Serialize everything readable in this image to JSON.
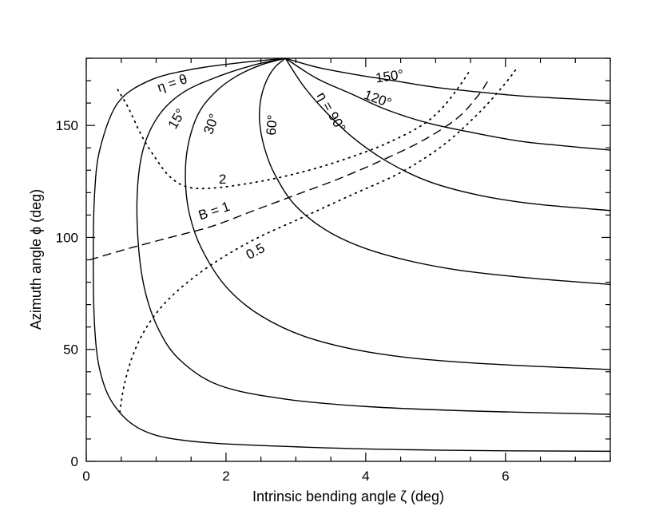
{
  "chart_data": {
    "type": "line",
    "title": "",
    "xlabel": "Intrinsic bending angle ζ (deg)",
    "ylabel": "Azimuth angle ϕ (deg)",
    "xlim": [
      0,
      7.5
    ],
    "ylim": [
      0,
      180
    ],
    "xticks": [
      0,
      2,
      4,
      6
    ],
    "xtick_labels": [
      "0",
      "2",
      "4",
      "6"
    ],
    "yticks": [
      0,
      50,
      100,
      150
    ],
    "ytick_labels": [
      "0",
      "50",
      "100",
      "150"
    ],
    "grid": false,
    "legend": "none",
    "series": [
      {
        "style": "solid",
        "x": [
          2.85,
          2.2,
          1.5,
          0.9,
          0.45,
          0.2,
          0.12,
          0.1,
          0.12,
          0.2,
          0.4,
          0.8,
          1.5,
          3,
          5,
          7.5
        ],
        "y": [
          180,
          178,
          175,
          170,
          160,
          140,
          120,
          90,
          60,
          40,
          25,
          14,
          9,
          6.5,
          5,
          4.5
        ]
      },
      {
        "style": "solid",
        "x": [
          2.85,
          2.4,
          1.9,
          1.4,
          1.05,
          0.82,
          0.73,
          0.75,
          0.85,
          1.05,
          1.35,
          1.9,
          2.8,
          4,
          5.5,
          7.5
        ],
        "y": [
          180,
          177,
          172,
          165,
          155,
          140,
          120,
          95,
          75,
          58,
          45,
          34,
          28,
          24.5,
          22.5,
          21
        ]
      },
      {
        "style": "solid",
        "x": [
          2.85,
          2.5,
          2.15,
          1.85,
          1.6,
          1.45,
          1.42,
          1.48,
          1.65,
          2.0,
          2.5,
          3.2,
          4.2,
          5.5,
          7.5
        ],
        "y": [
          180,
          177,
          172,
          165,
          155,
          140,
          125,
          110,
          95,
          78,
          65,
          55,
          48,
          44,
          41
        ]
      },
      {
        "style": "solid",
        "x": [
          2.85,
          2.7,
          2.58,
          2.5,
          2.48,
          2.55,
          2.7,
          3.0,
          3.5,
          4.2,
          5.2,
          6.3,
          7.5
        ],
        "y": [
          180,
          176,
          170,
          162,
          152,
          140,
          128,
          114,
          102,
          93,
          86,
          82,
          79
        ]
      },
      {
        "style": "solid",
        "x": [
          2.85,
          3.1,
          3.4,
          3.8,
          4.3,
          4.9,
          5.6,
          6.4,
          7.5
        ],
        "y": [
          180,
          168,
          157,
          145,
          134,
          125,
          119,
          115,
          112
        ]
      },
      {
        "style": "solid",
        "x": [
          2.85,
          3.3,
          3.8,
          4.3,
          4.9,
          5.5,
          6.2,
          6.8,
          7.5
        ],
        "y": [
          180,
          171,
          164,
          157,
          151,
          147,
          143,
          141,
          139
        ]
      },
      {
        "style": "solid",
        "x": [
          2.85,
          3.3,
          3.8,
          4.4,
          5.0,
          5.6,
          6.3,
          7.5
        ],
        "y": [
          180,
          176,
          173,
          170,
          167,
          165,
          163,
          161
        ]
      },
      {
        "style": "dotted",
        "x": [
          0.45,
          0.6,
          0.8,
          1.0,
          1.2,
          1.45,
          1.8,
          2.3,
          2.8,
          3.3,
          3.8,
          4.3,
          4.8,
          5.1,
          5.35,
          5.5
        ],
        "y": [
          166,
          158,
          145,
          135,
          127,
          122.5,
          122,
          124,
          127,
          131,
          136,
          142,
          150,
          158,
          168,
          175
        ]
      },
      {
        "style": "dashed",
        "x": [
          0.05,
          0.6,
          1.2,
          1.8,
          2.4,
          3.0,
          3.6,
          4.2,
          4.8,
          5.3,
          5.6,
          5.75
        ],
        "y": [
          90,
          95,
          100,
          105,
          112,
          119,
          126,
          134,
          143,
          153,
          163,
          170
        ]
      },
      {
        "style": "dotted",
        "x": [
          0.48,
          0.55,
          0.7,
          0.95,
          1.3,
          1.8,
          2.4,
          3.1,
          3.8,
          4.5,
          5.1,
          5.6,
          5.95,
          6.15
        ],
        "y": [
          22,
          35,
          50,
          64,
          76,
          88,
          99,
          109,
          119,
          129,
          141,
          155,
          167,
          175
        ]
      }
    ],
    "annotations": [
      {
        "text": "η = θ",
        "x": 1.25,
        "y": 167,
        "rotate": -18
      },
      {
        "text": "15°",
        "x": 1.35,
        "y": 152,
        "rotate": -60
      },
      {
        "text": "30°",
        "x": 1.85,
        "y": 150,
        "rotate": -70
      },
      {
        "text": "60°",
        "x": 2.72,
        "y": 150,
        "rotate": -85
      },
      {
        "text": "η = 90°",
        "x": 3.45,
        "y": 155,
        "rotate": 60
      },
      {
        "text": "120°",
        "x": 4.15,
        "y": 160,
        "rotate": 20
      },
      {
        "text": "150°",
        "x": 4.35,
        "y": 170,
        "rotate": -8
      },
      {
        "text": "2",
        "x": 1.95,
        "y": 124,
        "rotate": 0
      },
      {
        "text": "B = 1",
        "x": 1.85,
        "y": 110,
        "rotate": -18
      },
      {
        "text": "0.5",
        "x": 2.45,
        "y": 92,
        "rotate": -28
      }
    ]
  }
}
